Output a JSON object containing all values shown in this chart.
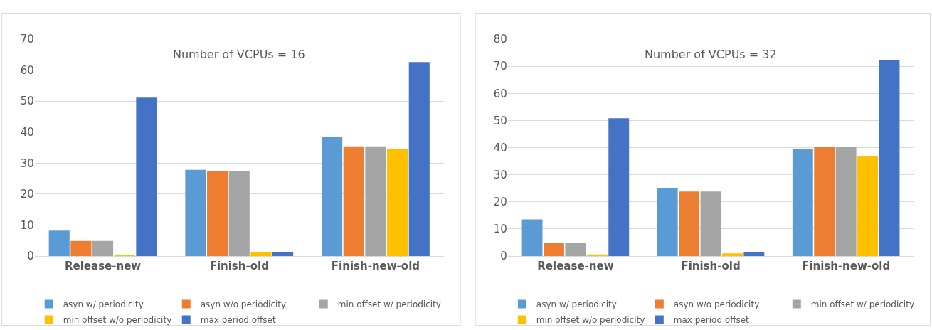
{
  "chart_data": [
    {
      "type": "bar",
      "title": "Number of VCPUs = 16",
      "categories": [
        "Release-new",
        "Finish-old",
        "Finish-new-old"
      ],
      "series": [
        {
          "name": "asyn w/ periodicity",
          "color": "#5b9bd5",
          "values": [
            8.2,
            27.8,
            38.3
          ]
        },
        {
          "name": "asyn w/o periodicity",
          "color": "#ed7d31",
          "values": [
            4.9,
            27.5,
            35.4
          ]
        },
        {
          "name": "min offset w/ periodicity",
          "color": "#a5a5a5",
          "values": [
            4.9,
            27.5,
            35.4
          ]
        },
        {
          "name": "min offset w/o periodicity",
          "color": "#ffc000",
          "values": [
            0.4,
            1.3,
            34.5
          ]
        },
        {
          "name": "max period offset",
          "color": "#4472c4",
          "values": [
            51.1,
            1.3,
            62.6
          ]
        }
      ],
      "ylim": [
        0,
        70
      ],
      "yticks": [
        0,
        10,
        20,
        30,
        40,
        50,
        60,
        70
      ],
      "grid": "y",
      "legend": "bottom"
    },
    {
      "type": "bar",
      "title": "Number of VCPUs = 32",
      "categories": [
        "Release-new",
        "Finish-old",
        "Finish-new-old"
      ],
      "series": [
        {
          "name": "asyn w/ periodicity",
          "color": "#5b9bd5",
          "values": [
            13.5,
            25.1,
            39.4
          ]
        },
        {
          "name": "asyn w/o periodicity",
          "color": "#ed7d31",
          "values": [
            4.9,
            23.8,
            40.4
          ]
        },
        {
          "name": "min offset w/ periodicity",
          "color": "#a5a5a5",
          "values": [
            4.9,
            23.8,
            40.4
          ]
        },
        {
          "name": "min offset w/o periodicity",
          "color": "#ffc000",
          "values": [
            0.6,
            1.0,
            36.7
          ]
        },
        {
          "name": "max period offset",
          "color": "#4472c4",
          "values": [
            50.8,
            1.4,
            72.3
          ]
        }
      ],
      "ylim": [
        0,
        80
      ],
      "yticks": [
        0,
        10,
        20,
        30,
        40,
        50,
        60,
        70,
        80
      ],
      "grid": "y",
      "legend": "bottom"
    }
  ]
}
